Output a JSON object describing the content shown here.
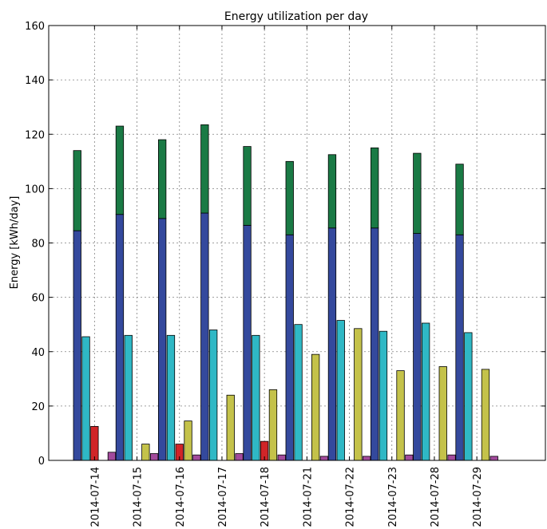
{
  "chart_data": {
    "type": "bar",
    "title": "Energy utilization per day",
    "xlabel": "",
    "ylabel": "Energy [kWh/day]",
    "ylim": [
      0,
      160
    ],
    "yticks": [
      0,
      20,
      40,
      60,
      80,
      100,
      120,
      140,
      160
    ],
    "grid": true,
    "categories": [
      "2014-07-14",
      "2014-07-15",
      "2014-07-16",
      "2014-07-17",
      "2014-07-18",
      "2014-07-21",
      "2014-07-22",
      "2014-07-23",
      "2014-07-28",
      "2014-07-29"
    ],
    "stacked_bar": {
      "lower": {
        "color": "#34499d",
        "values": [
          84.5,
          90.5,
          89,
          91,
          86.5,
          83,
          85.5,
          85.5,
          83.5,
          83
        ]
      },
      "upper": {
        "color": "#1a7a45",
        "values": [
          29.5,
          32.5,
          29,
          32.5,
          29,
          27,
          27,
          29.5,
          29.5,
          26
        ]
      }
    },
    "series": [
      {
        "color": "#2fb8c5",
        "values": [
          45.5,
          46,
          46,
          48,
          46,
          50,
          51.5,
          47.5,
          50.5,
          47
        ]
      },
      {
        "color": "#d02528",
        "values": [
          12.5,
          0,
          6,
          0,
          7,
          0,
          0,
          0,
          0,
          0
        ]
      },
      {
        "color": "#c4c24a",
        "values": [
          0,
          6,
          14.5,
          24,
          26,
          39,
          48.5,
          33,
          34.5,
          33.5
        ]
      },
      {
        "color": "#a24a9c",
        "values": [
          3,
          2.5,
          2,
          2.5,
          2,
          1.5,
          1.5,
          2,
          2,
          1.5
        ]
      }
    ]
  }
}
